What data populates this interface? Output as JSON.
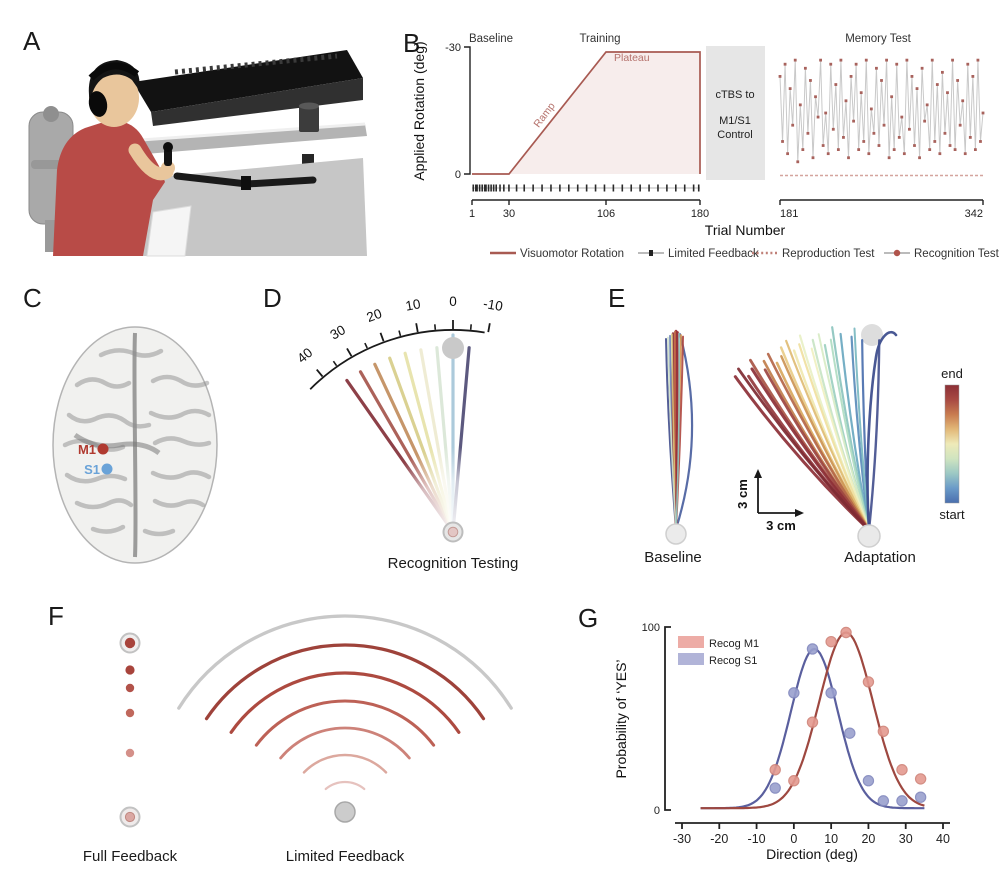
{
  "page": {
    "bg": "#ffffff"
  },
  "panelA": {
    "label": "A"
  },
  "panelB": {
    "label": "B",
    "phases": [
      "Baseline",
      "Training",
      "Memory Test"
    ],
    "ylabel": "Applied Rotation (deg)",
    "yticks": [
      "-30",
      "0"
    ],
    "ramp": "Ramp",
    "plateau": "Plateau",
    "ctbs": [
      "cTBS to",
      "M1/S1",
      "Control"
    ],
    "xticks": [
      "1",
      "30",
      "106",
      "180",
      "181",
      "342"
    ],
    "xlabel": "Trial Number",
    "legend": [
      {
        "label": "Visuomotor Rotation",
        "color": "#a85a52"
      },
      {
        "label": "Limited Feedback",
        "color": "#b8b8b8"
      },
      {
        "label": "Reproduction Test",
        "color": "#c08078"
      },
      {
        "label": "Recognition Test",
        "color": "#b8b8b8"
      }
    ],
    "line_color": "#a85a52",
    "fill_color": "#f7edec",
    "marker_color": "#a8625c",
    "zigzag_line_color": "#c9c9c9"
  },
  "panelC": {
    "label": "C",
    "m1_label": "M1",
    "s1_label": "S1",
    "m1_color": "#b03a30",
    "s1_color": "#6aa3d8"
  },
  "panelD": {
    "label": "D",
    "caption": "Recognition Testing",
    "scale_major": [
      40,
      30,
      20,
      10,
      0,
      -10
    ],
    "scale_minor": [
      35,
      25,
      15,
      5,
      -5
    ],
    "lines": [
      {
        "angle": 35,
        "color": "#87363f"
      },
      {
        "angle": 30,
        "color": "#a85a52"
      },
      {
        "angle": 25,
        "color": "#c39163"
      },
      {
        "angle": 20,
        "color": "#d9cf8d"
      },
      {
        "angle": 15,
        "color": "#e7e3ab"
      },
      {
        "angle": 10,
        "color": "#efecd2"
      },
      {
        "angle": 5,
        "color": "#dbe7d8"
      },
      {
        "angle": 0,
        "color": "#a8c8da"
      },
      {
        "angle": -5,
        "color": "#545179"
      }
    ]
  },
  "panelE": {
    "label": "E",
    "captions": {
      "baseline": "Baseline",
      "adaptation": "Adaptation"
    },
    "scale_v": "3 cm",
    "scale_h": "3 cm",
    "colorbar": {
      "top": "end",
      "bottom": "start",
      "stops": [
        "#8c2f36",
        "#a84a42",
        "#c87c50",
        "#e2b878",
        "#eeeab8",
        "#cfe4c0",
        "#9cc8c4",
        "#6a9ac8",
        "#4a6fae"
      ]
    },
    "baseline_trajectories": [
      {
        "dx": -10,
        "b": -8,
        "c": "#44508e",
        "w": 2.0
      },
      {
        "dx": 4,
        "b": 30,
        "c": "#4a5f9e",
        "w": 2.2
      },
      {
        "dx": -6,
        "b": -5,
        "c": "#6a86b8",
        "w": 1.8
      },
      {
        "dx": -3,
        "b": -4,
        "c": "#8c2f36",
        "w": 2.4
      },
      {
        "dx": 0,
        "b": -2,
        "c": "#9e3038",
        "w": 2.6
      },
      {
        "dx": 2,
        "b": 2,
        "c": "#b24038",
        "w": 2.4
      },
      {
        "dx": -1,
        "b": -1,
        "c": "#c06a48",
        "w": 2.0
      },
      {
        "dx": 5,
        "b": 3,
        "c": "#d89a52",
        "w": 1.8
      },
      {
        "dx": -4,
        "b": -3,
        "c": "#d8c27a",
        "w": 1.6
      },
      {
        "dx": 1,
        "b": 1,
        "c": "#98303a",
        "w": 2.2
      },
      {
        "dx": 7,
        "b": 5,
        "c": "#b04a42",
        "w": 2.0
      },
      {
        "dx": -8,
        "b": -6,
        "c": "#cfe0c8",
        "w": 1.6
      },
      {
        "dx": 3,
        "b": 4,
        "c": "#8cc4c0",
        "w": 1.6
      }
    ],
    "adaptation_trajectories": [
      {
        "a": 2,
        "c": "#4a6fae",
        "w": 2.2,
        "b": 2
      },
      {
        "a": 5,
        "c": "#5a8cba",
        "w": 2.2,
        "b": 3
      },
      {
        "a": 8,
        "c": "#6aa8c0",
        "w": 2.2,
        "b": 3
      },
      {
        "a": 4,
        "c": "#7ab8c0",
        "w": 2.0,
        "b": 2
      },
      {
        "a": 10,
        "c": "#8cc4be",
        "w": 2.2,
        "b": 3
      },
      {
        "a": 13,
        "c": "#9ccfc0",
        "w": 2.2,
        "b": 4
      },
      {
        "a": 11,
        "c": "#b0dcc2",
        "w": 2.0,
        "b": 3
      },
      {
        "a": 16,
        "c": "#c8e4c4",
        "w": 2.2,
        "b": 4
      },
      {
        "a": 14,
        "c": "#d8ecc6",
        "w": 2.0,
        "b": 3
      },
      {
        "a": 19,
        "c": "#e8f0c6",
        "w": 2.2,
        "b": 4
      },
      {
        "a": 17,
        "c": "#f0f0c0",
        "w": 2.0,
        "b": 3
      },
      {
        "a": 22,
        "c": "#f0e8b0",
        "w": 2.4,
        "b": 4
      },
      {
        "a": 20,
        "c": "#f0e0a0",
        "w": 2.2,
        "b": 3
      },
      {
        "a": 25,
        "c": "#e8cc88",
        "w": 2.4,
        "b": 4
      },
      {
        "a": 23,
        "c": "#e0bc74",
        "w": 2.2,
        "b": 3
      },
      {
        "a": 28,
        "c": "#d8a860",
        "w": 2.6,
        "b": 4
      },
      {
        "a": 26,
        "c": "#cc9454",
        "w": 2.4,
        "b": 3
      },
      {
        "a": 31,
        "c": "#c07e4c",
        "w": 2.6,
        "b": 4
      },
      {
        "a": 29,
        "c": "#b46648",
        "w": 2.6,
        "b": 3
      },
      {
        "a": 34,
        "c": "#a85444",
        "w": 2.8,
        "b": 4
      },
      {
        "a": 32,
        "c": "#9c4440",
        "w": 2.8,
        "b": 3
      },
      {
        "a": 37,
        "c": "#92383c",
        "w": 3.0,
        "b": 5
      },
      {
        "a": 35,
        "c": "#8c2f36",
        "w": 3.0,
        "b": 3
      },
      {
        "a": 40,
        "c": "#8c2f36",
        "w": 3.0,
        "b": 6
      },
      {
        "a": 38,
        "c": "#7e2a32",
        "w": 2.8,
        "b": 4
      },
      {
        "a": -3,
        "c": "#44508e",
        "w": 2.4,
        "b": -4
      }
    ]
  },
  "panelF": {
    "label": "F",
    "full_caption": "Full Feedback",
    "limited_caption": "Limited Feedback",
    "full_dots": [
      {
        "y": 75,
        "r": 4.6,
        "c": "#a8443c"
      },
      {
        "y": 93,
        "r": 4.2,
        "c": "#b2524a"
      },
      {
        "y": 118,
        "r": 4.2,
        "c": "#c0685c"
      },
      {
        "y": 158,
        "r": 4.2,
        "c": "#d49089"
      }
    ],
    "arcs": [
      {
        "r": 30,
        "c": "#e6c2be",
        "w": 2.2,
        "h": 40
      },
      {
        "r": 57,
        "c": "#dca89e",
        "w": 2.5,
        "h": 46
      },
      {
        "r": 84,
        "c": "#cd8279",
        "w": 2.8,
        "h": 50
      },
      {
        "r": 111,
        "c": "#bd6156",
        "w": 3.0,
        "h": 53
      },
      {
        "r": 139,
        "c": "#ad4a40",
        "w": 3.2,
        "h": 55
      },
      {
        "r": 167,
        "c": "#9e423a",
        "w": 3.3,
        "h": 56
      },
      {
        "r": 196,
        "c": "#c8c8c8",
        "w": 3.3,
        "h": 58
      }
    ]
  },
  "panelG": {
    "label": "G",
    "ylabel": "Probability of ‘YES’",
    "xlabel": "Direction (deg)",
    "yticks": [
      "100",
      "0"
    ],
    "xticks": [
      "-30",
      "-20",
      "-10",
      "0",
      "10",
      "20",
      "30",
      "40"
    ]
  },
  "chart_data": [
    {
      "type": "line",
      "panel": "B",
      "title": "Visuomotor rotation paradigm",
      "xlabel": "Trial Number",
      "ylabel": "Applied Rotation (deg)",
      "ylim": [
        0,
        -30
      ],
      "xticks": [
        1,
        30,
        106,
        180,
        181,
        342
      ],
      "phases": [
        {
          "name": "Baseline",
          "trials": [
            1,
            30
          ]
        },
        {
          "name": "Training",
          "trials": [
            30,
            180
          ]
        },
        {
          "name": "Memory Test",
          "trials": [
            181,
            342
          ]
        }
      ],
      "rotation_profile": {
        "x": [
          1,
          30,
          106,
          180
        ],
        "y": [
          0,
          0,
          -30,
          -30
        ]
      },
      "intervention": "cTBS to M1/S1 Control",
      "memory_test_magnitudes_deg": [
        24,
        8,
        27,
        5,
        21,
        12,
        28,
        3,
        17,
        6,
        26,
        10,
        23,
        4,
        19,
        14,
        28,
        7,
        15,
        5,
        27,
        11,
        22,
        6,
        28,
        9,
        18,
        4,
        24,
        13,
        27,
        6,
        20,
        8,
        28,
        5,
        16,
        10,
        26,
        7,
        23,
        12,
        28,
        4,
        19,
        6,
        27,
        9,
        14,
        5,
        28,
        11,
        24,
        7,
        21,
        4,
        26,
        13,
        17,
        6,
        28,
        8,
        22,
        5,
        25,
        10,
        20,
        7,
        28,
        6,
        23,
        12,
        18,
        5,
        27,
        9,
        24,
        6,
        28,
        8,
        15
      ],
      "limited_feedback_trials": [
        2,
        4,
        5,
        7,
        9,
        11,
        12,
        14,
        16,
        18,
        20,
        23,
        26,
        30,
        36,
        42,
        49,
        56,
        63,
        70,
        77,
        84,
        91,
        98,
        105,
        112,
        119,
        126,
        133,
        140,
        147,
        154,
        161,
        168,
        175,
        179
      ]
    },
    {
      "type": "scatter",
      "panel": "G",
      "xlabel": "Direction (deg)",
      "ylabel": "Probability of ‘YES’",
      "xlim": [
        -30,
        40
      ],
      "ylim": [
        0,
        100
      ],
      "series": [
        {
          "name": "Recog M1",
          "swatch": "#edaca6",
          "curve_color": "#9e4840",
          "point_fill": "#e49a90",
          "point_stroke": "#cf8277",
          "fit": {
            "amp": 96,
            "mean": 14,
            "sd": 7.2,
            "base": 1
          },
          "points": [
            [
              -5,
              22
            ],
            [
              0,
              16
            ],
            [
              5,
              48
            ],
            [
              10,
              92
            ],
            [
              14,
              97
            ],
            [
              20,
              70
            ],
            [
              24,
              43
            ],
            [
              29,
              22
            ],
            [
              34,
              17
            ]
          ]
        },
        {
          "name": "Recog S1",
          "swatch": "#b1b4d8",
          "curve_color": "#5a5f9e",
          "point_fill": "#9aa0ce",
          "point_stroke": "#8087bd",
          "fit": {
            "amp": 87,
            "mean": 5.5,
            "sd": 6.3,
            "base": 1
          },
          "points": [
            [
              -5,
              12
            ],
            [
              0,
              64
            ],
            [
              5,
              88
            ],
            [
              10,
              64
            ],
            [
              15,
              42
            ],
            [
              20,
              16
            ],
            [
              24,
              5
            ],
            [
              29,
              5
            ],
            [
              34,
              7
            ]
          ]
        }
      ]
    }
  ]
}
